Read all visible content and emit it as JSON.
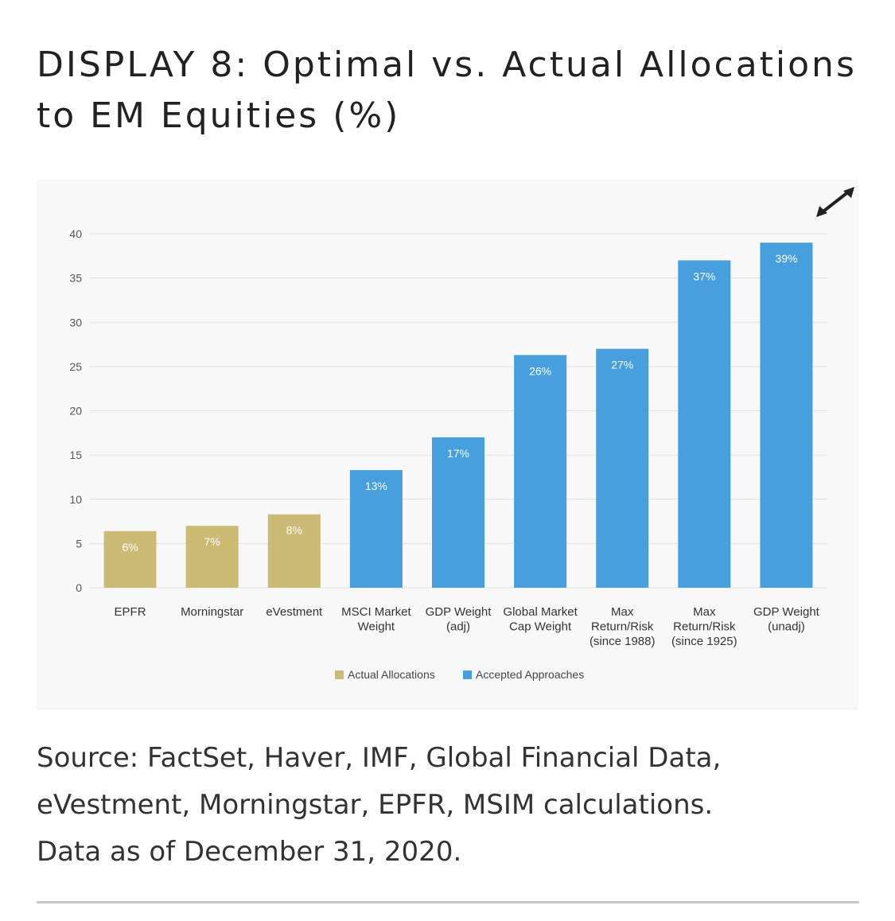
{
  "title": "DISPLAY 8: Optimal vs. Actual Allocations to EM Equities (%)",
  "source_line1": "Source: FactSet, Haver, IMF, Global Financial Data,",
  "source_line2": "eVestment, Morningstar, EPFR, MSIM calculations.",
  "source_line3": "Data as of December 31, 2020.",
  "expand_icon": "expand-arrows-icon",
  "chart_data": {
    "type": "bar",
    "title": "",
    "xlabel": "",
    "ylabel": "",
    "ylim": [
      0,
      40
    ],
    "yticks": [
      0,
      5,
      10,
      15,
      20,
      25,
      30,
      35,
      40
    ],
    "grid": true,
    "legend_position": "bottom-center",
    "categories": [
      [
        "EPFR"
      ],
      [
        "Morningstar"
      ],
      [
        "eVestment"
      ],
      [
        "MSCI Market",
        "Weight"
      ],
      [
        "GDP Weight",
        "(adj)"
      ],
      [
        "Global Market",
        "Cap Weight"
      ],
      [
        "Max",
        "Return/Risk",
        "(since 1988)"
      ],
      [
        "Max",
        "Return/Risk",
        "(since 1925)"
      ],
      [
        "GDP Weight",
        "(unadj)"
      ]
    ],
    "values": [
      6.4,
      7.0,
      8.3,
      13.3,
      17.0,
      26.3,
      27.0,
      37.0,
      39.0
    ],
    "labels": [
      "6%",
      "7%",
      "8%",
      "13%",
      "17%",
      "26%",
      "27%",
      "37%",
      "39%"
    ],
    "groups": [
      "actual",
      "actual",
      "actual",
      "accepted",
      "accepted",
      "accepted",
      "accepted",
      "accepted",
      "accepted"
    ],
    "series": [
      {
        "key": "actual",
        "name": "Actual Allocations",
        "color": "#ccbb75"
      },
      {
        "key": "accepted",
        "name": "Accepted Approaches",
        "color": "#479fdd"
      }
    ]
  }
}
